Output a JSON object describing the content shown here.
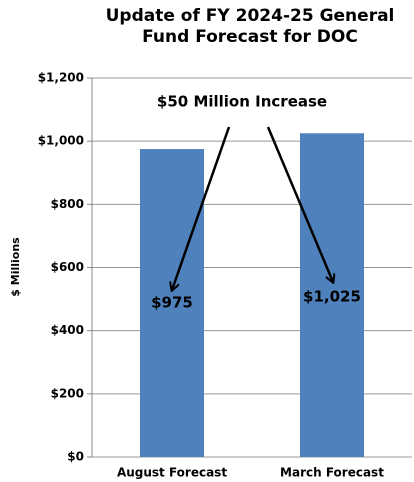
{
  "chart_data": {
    "type": "bar",
    "title": "Update of FY 2024-25 General Fund Forecast for DOC",
    "y_label": "$ Millions",
    "annotation": "$50 Million Increase",
    "categories": [
      "August Forecast",
      "March Forecast"
    ],
    "values": [
      975,
      1025
    ],
    "value_labels": [
      "$975",
      "$1,025"
    ],
    "color": "#4f81bd",
    "ylim": [
      0,
      1200
    ],
    "yticks": [
      {
        "value": 0,
        "label": "$0"
      },
      {
        "value": 200,
        "label": "$200"
      },
      {
        "value": 400,
        "label": "$400"
      },
      {
        "value": 600,
        "label": "$600"
      },
      {
        "value": 800,
        "label": "$800"
      },
      {
        "value": 1000,
        "label": "$1,000"
      },
      {
        "value": 1200,
        "label": "$1,200"
      }
    ],
    "grid": true
  }
}
